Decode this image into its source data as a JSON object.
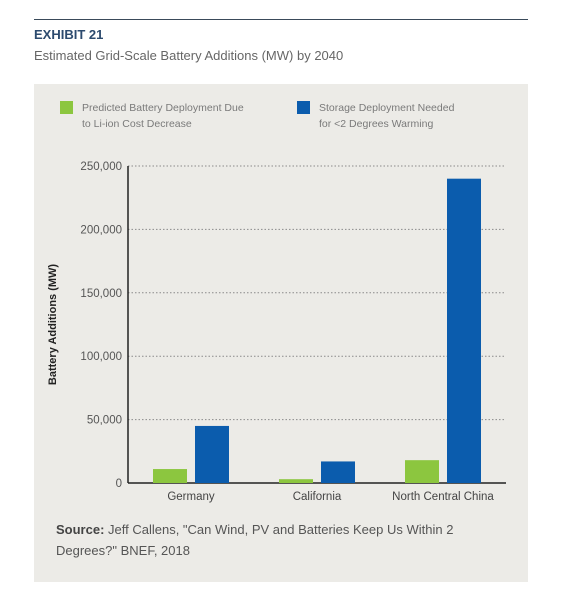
{
  "header": {
    "exhibit": "EXHIBIT 21",
    "subtitle": "Estimated Grid-Scale Battery Additions (MW) by 2040"
  },
  "legend": [
    {
      "line1": "Predicted Battery Deployment Due",
      "line2": "to Li-ion Cost Decrease",
      "color": "#8cc63f"
    },
    {
      "line1": "Storage Deployment Needed",
      "line2": "for <2 Degrees Warming",
      "color": "#0b5cad"
    }
  ],
  "chart_data": {
    "type": "bar",
    "categories": [
      "Germany",
      "California",
      "North Central China"
    ],
    "series": [
      {
        "name": "Predicted Battery Deployment Due to Li-ion Cost Decrease",
        "values": [
          11000,
          3000,
          18000
        ],
        "color": "#8cc63f"
      },
      {
        "name": "Storage Deployment Needed for <2 Degrees Warming",
        "values": [
          45000,
          17000,
          240000
        ],
        "color": "#0b5cad"
      }
    ],
    "ylabel": "Battery Additions (MW)",
    "ylim": [
      0,
      250000
    ],
    "yticks": [
      0,
      50000,
      100000,
      150000,
      200000,
      250000
    ],
    "ytick_labels": [
      "0",
      "50,000",
      "100,000",
      "150,000",
      "200,000",
      "250,000"
    ],
    "grid": "horizontal dotted",
    "legend_position": "top"
  },
  "source": {
    "label": "Source:",
    "text": " Jeff Callens, \"Can Wind, PV and Batteries Keep Us Within 2 Degrees?\" BNEF, 2018"
  }
}
